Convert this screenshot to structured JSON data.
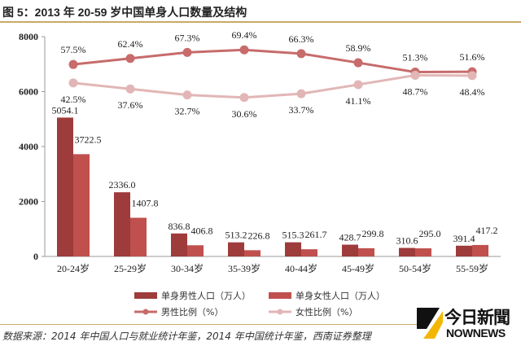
{
  "title": "图 5：2013 年 20-59 岁中国单身人口数量及结构",
  "source": "数据来源：2014 年中国人口与就业统计年鉴，2014 年中国统计年鉴，西南证券整理",
  "logo": {
    "cn": "今日新聞",
    "en": "NOWNEWS"
  },
  "chart_data": {
    "type": "bar+line",
    "categories": [
      "20-24岁",
      "25-29岁",
      "30-34岁",
      "35-39岁",
      "40-44岁",
      "45-49岁",
      "50-54岁",
      "55-59岁"
    ],
    "ylim": [
      0,
      8000
    ],
    "yticks": [
      "0",
      "2000",
      "4000",
      "6000",
      "8000"
    ],
    "y2_hidden": true,
    "grid": false,
    "legend_placement": "bottom",
    "bars": [
      {
        "name": "单身男性人口（万人）",
        "color": "#9e3b3b",
        "values": [
          5054.1,
          2336.0,
          836.8,
          513.2,
          515.3,
          428.7,
          310.6,
          391.4
        ],
        "labels": [
          "5054.1",
          "2336.0",
          "836.8",
          "513.2",
          "515.3",
          "428.7",
          "310.6",
          "391.4"
        ]
      },
      {
        "name": "单身女性人口（万人）",
        "color": "#c0504d",
        "values": [
          3722.5,
          1407.8,
          406.8,
          226.8,
          261.7,
          299.8,
          295.0,
          417.2
        ],
        "labels": [
          "3722.5",
          "1407.8",
          "406.8",
          "226.8",
          "261.7",
          "299.8",
          "295.0",
          "417.2"
        ]
      }
    ],
    "lines": [
      {
        "name": "男性比例（%）",
        "color": "#c76b6b",
        "values": [
          57.5,
          62.4,
          67.3,
          69.4,
          66.3,
          58.9,
          51.3,
          51.6
        ],
        "labels": [
          "57.5%",
          "62.4%",
          "67.3%",
          "69.4%",
          "66.3%",
          "58.9%",
          "51.3%",
          "51.6%"
        ]
      },
      {
        "name": "女性比例（%）",
        "color": "#e2b6b6",
        "values": [
          42.5,
          37.6,
          32.7,
          30.6,
          33.7,
          41.1,
          48.7,
          48.4
        ],
        "labels": [
          "42.5%",
          "37.6%",
          "32.7%",
          "30.6%",
          "33.7%",
          "41.1%",
          "48.7%",
          "48.4%"
        ]
      }
    ]
  }
}
